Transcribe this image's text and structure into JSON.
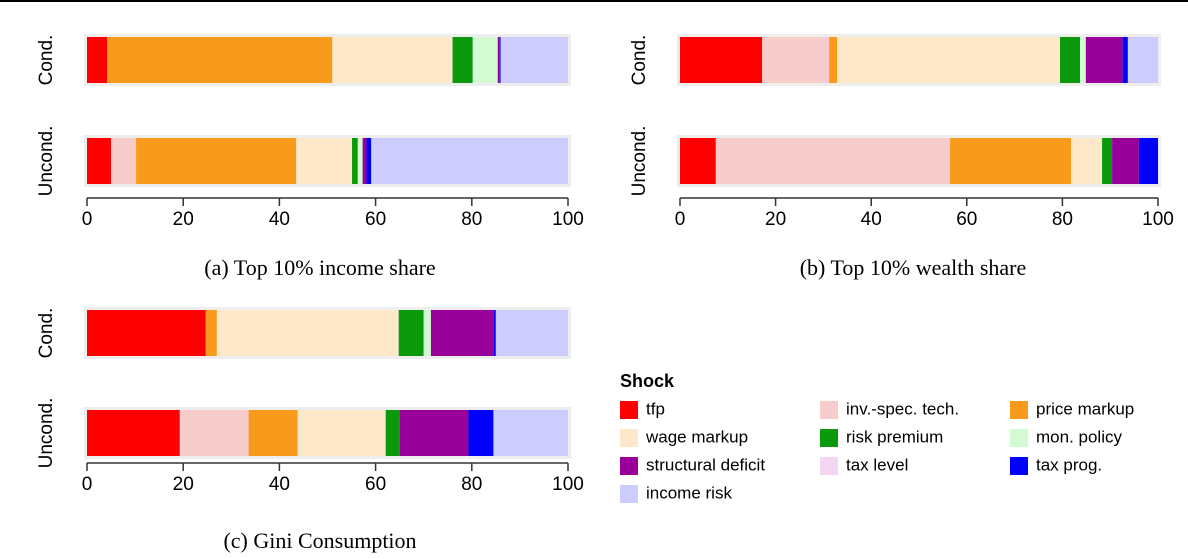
{
  "chart_data": [
    {
      "type": "stacked-barh",
      "caption": "(a) Top 10% income share",
      "categories": [
        "Cond.",
        "Uncond."
      ],
      "xlim": [
        0,
        100
      ],
      "xticks": [
        0,
        20,
        40,
        60,
        80,
        100
      ],
      "series": [
        {
          "values": [
            4.2,
            5.0
          ]
        },
        {
          "values": [
            0,
            5.2
          ]
        },
        {
          "values": [
            46.8,
            33.3
          ]
        },
        {
          "values": [
            25.0,
            11.6
          ]
        },
        {
          "values": [
            4.2,
            1.2
          ]
        },
        {
          "values": [
            5.2,
            1.0
          ]
        },
        {
          "values": [
            0.4,
            0.8
          ]
        },
        {
          "values": [
            0,
            0
          ]
        },
        {
          "values": [
            0.2,
            1.0
          ]
        },
        {
          "values": [
            14.0,
            40.9
          ]
        }
      ]
    },
    {
      "type": "stacked-barh",
      "caption": "(b) Top 10% wealth share",
      "categories": [
        "Cond.",
        "Uncond."
      ],
      "xlim": [
        0,
        100
      ],
      "xticks": [
        0,
        20,
        40,
        60,
        80,
        100
      ],
      "series": [
        {
          "values": [
            17.2,
            7.5
          ]
        },
        {
          "values": [
            14.0,
            49.0
          ]
        },
        {
          "values": [
            1.7,
            25.3
          ]
        },
        {
          "values": [
            46.6,
            6.5
          ]
        },
        {
          "values": [
            4.2,
            2.1
          ]
        },
        {
          "values": [
            1.2,
            0
          ]
        },
        {
          "values": [
            7.7,
            5.6
          ]
        },
        {
          "values": [
            0,
            0
          ]
        },
        {
          "values": [
            1.1,
            4.0
          ]
        },
        {
          "values": [
            6.3,
            0
          ]
        }
      ]
    },
    {
      "type": "stacked-barh",
      "caption": "(c) Gini Consumption",
      "categories": [
        "Cond.",
        "Uncond."
      ],
      "xlim": [
        0,
        100
      ],
      "xticks": [
        0,
        20,
        40,
        60,
        80,
        100
      ],
      "series": [
        {
          "values": [
            24.7,
            19.3
          ]
        },
        {
          "values": [
            0,
            14.3
          ]
        },
        {
          "values": [
            2.3,
            10.2
          ]
        },
        {
          "values": [
            37.8,
            18.3
          ]
        },
        {
          "values": [
            5.2,
            2.9
          ]
        },
        {
          "values": [
            1.5,
            0
          ]
        },
        {
          "values": [
            13.1,
            14.3
          ]
        },
        {
          "values": [
            0,
            0
          ]
        },
        {
          "values": [
            0.4,
            5.2
          ]
        },
        {
          "values": [
            15.0,
            15.5
          ]
        }
      ]
    }
  ],
  "legend": {
    "title": "Shock",
    "items": [
      {
        "name": "tfp",
        "color": "#ff0000"
      },
      {
        "name": "inv.-spec. tech.",
        "color": "#f9cccc"
      },
      {
        "name": "price markup",
        "color": "#f89a1c"
      },
      {
        "name": "wage markup",
        "color": "#fde9c9"
      },
      {
        "name": "risk premium",
        "color": "#0a990a"
      },
      {
        "name": "mon. policy",
        "color": "#d3fbd3"
      },
      {
        "name": "structural deficit",
        "color": "#990099"
      },
      {
        "name": "tax level",
        "color": "#f2d6f2"
      },
      {
        "name": "tax prog.",
        "color": "#0000ff"
      },
      {
        "name": "income risk",
        "color": "#ccccff"
      }
    ]
  }
}
